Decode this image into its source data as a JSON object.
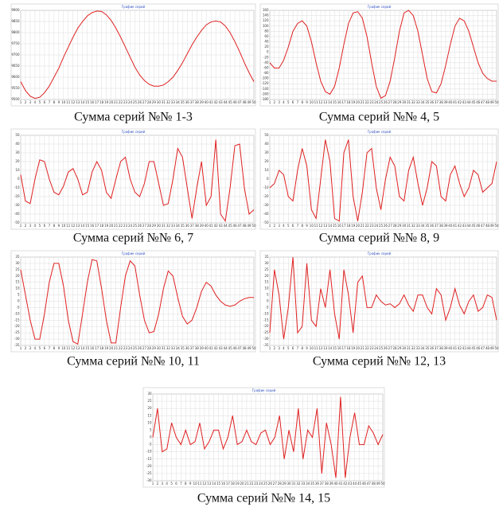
{
  "chart_data": [
    {
      "type": "line",
      "title": "График серий",
      "caption": "Сумма серий №№ 1-3",
      "color": "#e02020",
      "grid": true,
      "categories": [
        1,
        2,
        3,
        4,
        5,
        6,
        7,
        8,
        9,
        10,
        11,
        12,
        13,
        14,
        15,
        16,
        17,
        18,
        19,
        20,
        21,
        22,
        23,
        24,
        25,
        26,
        27,
        28,
        29,
        30,
        31,
        32,
        33,
        34,
        35,
        36,
        37,
        38,
        39,
        40,
        41,
        42,
        43,
        44,
        45,
        46,
        47,
        48,
        49,
        50
      ],
      "values": [
        9580,
        9540,
        9515,
        9505,
        9510,
        9530,
        9560,
        9600,
        9640,
        9690,
        9735,
        9780,
        9820,
        9850,
        9875,
        9890,
        9897,
        9895,
        9880,
        9855,
        9820,
        9780,
        9735,
        9690,
        9645,
        9610,
        9585,
        9568,
        9560,
        9560,
        9565,
        9580,
        9600,
        9630,
        9665,
        9705,
        9745,
        9780,
        9810,
        9835,
        9848,
        9852,
        9848,
        9830,
        9800,
        9760,
        9715,
        9665,
        9620,
        9580
      ],
      "ylim": [
        9500,
        9900
      ],
      "yticks": [
        9500,
        9550,
        9600,
        9650,
        9700,
        9750,
        9800,
        9850,
        9900
      ]
    },
    {
      "type": "line",
      "title": "График серий",
      "caption": "Сумма серий №№ 4, 5",
      "color": "#e02020",
      "grid": true,
      "categories": [
        1,
        2,
        3,
        4,
        5,
        6,
        7,
        8,
        9,
        10,
        11,
        12,
        13,
        14,
        15,
        16,
        17,
        18,
        19,
        20,
        21,
        22,
        23,
        24,
        25,
        26,
        27,
        28,
        29,
        30,
        31,
        32,
        33,
        34,
        35,
        36,
        37,
        38,
        39,
        40,
        41,
        42,
        43,
        44,
        45,
        46,
        47,
        48,
        49,
        50
      ],
      "values": [
        -40,
        -60,
        -60,
        -30,
        20,
        80,
        110,
        120,
        100,
        40,
        -40,
        -110,
        -150,
        -160,
        -130,
        -60,
        30,
        110,
        150,
        155,
        130,
        60,
        -40,
        -130,
        -175,
        -165,
        -110,
        -20,
        80,
        150,
        160,
        140,
        80,
        -10,
        -100,
        -150,
        -155,
        -120,
        -50,
        30,
        100,
        130,
        120,
        80,
        20,
        -40,
        -80,
        -100,
        -110,
        -110
      ],
      "ylim": [
        -180,
        160
      ],
      "yticks": [
        -180,
        -160,
        -140,
        -120,
        -100,
        -80,
        -60,
        -40,
        -20,
        0,
        20,
        40,
        60,
        80,
        100,
        120,
        140,
        160
      ]
    },
    {
      "type": "line",
      "title": "График серий",
      "caption": "Сумма серий №№ 6, 7",
      "color": "#e02020",
      "grid": true,
      "categories": [
        1,
        2,
        3,
        4,
        5,
        6,
        7,
        8,
        9,
        10,
        11,
        12,
        13,
        14,
        15,
        16,
        17,
        18,
        19,
        20,
        21,
        22,
        23,
        24,
        25,
        26,
        27,
        28,
        29,
        30,
        31,
        32,
        33,
        34,
        35,
        36,
        37,
        38,
        39,
        40,
        41,
        42,
        43,
        44,
        45,
        46,
        47,
        48,
        49,
        50
      ],
      "values": [
        5,
        -25,
        -28,
        0,
        22,
        20,
        0,
        -15,
        -18,
        -8,
        8,
        12,
        0,
        -18,
        -15,
        8,
        20,
        10,
        -15,
        -22,
        0,
        20,
        25,
        0,
        -15,
        -20,
        -5,
        20,
        20,
        -5,
        -30,
        -28,
        0,
        35,
        25,
        -10,
        -45,
        -10,
        20,
        -30,
        -20,
        45,
        -40,
        -48,
        -10,
        38,
        40,
        -10,
        -40,
        -35
      ],
      "ylim": [
        -50,
        50
      ],
      "yticks": [
        -50,
        -40,
        -30,
        -20,
        -10,
        0,
        10,
        20,
        30,
        40,
        50
      ]
    },
    {
      "type": "line",
      "title": "График серий",
      "caption": "Сумма серий №№ 8, 9",
      "color": "#e02020",
      "grid": true,
      "categories": [
        1,
        2,
        3,
        4,
        5,
        6,
        7,
        8,
        9,
        10,
        11,
        12,
        13,
        14,
        15,
        16,
        17,
        18,
        19,
        20,
        21,
        22,
        23,
        24,
        25,
        26,
        27,
        28,
        29,
        30,
        31,
        32,
        33,
        34,
        35,
        36,
        37,
        38,
        39,
        40,
        41,
        42,
        43,
        44,
        45,
        46,
        47,
        48,
        49,
        50
      ],
      "values": [
        -10,
        -5,
        10,
        5,
        -20,
        -25,
        10,
        35,
        15,
        -35,
        -45,
        0,
        45,
        20,
        -45,
        -48,
        30,
        45,
        -20,
        -48,
        -15,
        30,
        35,
        -10,
        -35,
        0,
        25,
        15,
        -20,
        -25,
        10,
        25,
        -5,
        -30,
        -10,
        20,
        15,
        -20,
        -25,
        5,
        15,
        -5,
        -20,
        -10,
        10,
        5,
        -15,
        -10,
        -5,
        20
      ],
      "ylim": [
        -50,
        50
      ],
      "yticks": [
        -50,
        -40,
        -30,
        -20,
        -10,
        0,
        10,
        20,
        30,
        40,
        50
      ]
    },
    {
      "type": "line",
      "title": "График серий",
      "caption": "Сумма серий №№ 10, 11",
      "color": "#e02020",
      "grid": true,
      "categories": [
        1,
        2,
        3,
        4,
        5,
        6,
        7,
        8,
        9,
        10,
        11,
        12,
        13,
        14,
        15,
        16,
        17,
        18,
        19,
        20,
        21,
        22,
        23,
        24,
        25,
        26,
        27,
        28,
        29,
        30,
        31,
        32,
        33,
        34,
        35,
        36,
        37,
        38,
        39,
        40,
        41,
        42,
        43,
        44,
        45,
        46,
        47,
        48,
        49,
        50
      ],
      "values": [
        25,
        5,
        -15,
        -30,
        -30,
        -10,
        15,
        30,
        30,
        12,
        -15,
        -32,
        -34,
        -10,
        15,
        33,
        32,
        10,
        -15,
        -33,
        -33,
        -5,
        20,
        32,
        28,
        5,
        -15,
        -25,
        -24,
        -10,
        10,
        24,
        20,
        3,
        -12,
        -18,
        -15,
        -5,
        8,
        15,
        12,
        5,
        0,
        -3,
        -4,
        -3,
        0,
        2,
        3,
        3
      ],
      "ylim": [
        -35,
        35
      ],
      "yticks": [
        -35,
        -30,
        -25,
        -20,
        -15,
        -10,
        -5,
        0,
        5,
        10,
        15,
        20,
        25,
        30,
        35
      ]
    },
    {
      "type": "line",
      "title": "График серий",
      "caption": "Сумма серий №№ 12, 13",
      "color": "#e02020",
      "grid": true,
      "categories": [
        1,
        2,
        3,
        4,
        5,
        6,
        7,
        8,
        9,
        10,
        11,
        12,
        13,
        14,
        15,
        16,
        17,
        18,
        19,
        20,
        21,
        22,
        23,
        24,
        25,
        26,
        27,
        28,
        29,
        30,
        31,
        32,
        33,
        34,
        35,
        36,
        37,
        38,
        39,
        40,
        41,
        42,
        43,
        44,
        45,
        46,
        47,
        48,
        49,
        50
      ],
      "values": [
        -25,
        25,
        5,
        -30,
        -5,
        35,
        -25,
        -20,
        30,
        -15,
        -20,
        10,
        -5,
        25,
        -10,
        -30,
        25,
        5,
        -25,
        15,
        20,
        -5,
        -5,
        5,
        0,
        -3,
        -2,
        -5,
        -2,
        5,
        -3,
        -8,
        5,
        5,
        -5,
        -10,
        10,
        5,
        -15,
        -5,
        10,
        -3,
        -10,
        0,
        5,
        -8,
        -5,
        5,
        3,
        -15
      ],
      "ylim": [
        -35,
        35
      ],
      "yticks": [
        -35,
        -30,
        -25,
        -20,
        -15,
        -10,
        -5,
        0,
        5,
        10,
        15,
        20,
        25,
        30,
        35
      ]
    },
    {
      "type": "line",
      "title": "График серий",
      "caption": "Сумма серий №№ 14, 15",
      "color": "#e02020",
      "grid": true,
      "categories": [
        1,
        2,
        3,
        4,
        5,
        6,
        7,
        8,
        9,
        10,
        11,
        12,
        13,
        14,
        15,
        16,
        17,
        18,
        19,
        20,
        21,
        22,
        23,
        24,
        25,
        26,
        27,
        28,
        29,
        30,
        31,
        32,
        33,
        34,
        35,
        36,
        37,
        38,
        39,
        40,
        41,
        42,
        43,
        44,
        45,
        46,
        47,
        48,
        49,
        50
      ],
      "values": [
        0,
        20,
        -10,
        -8,
        10,
        0,
        -5,
        5,
        -5,
        -3,
        10,
        -8,
        -3,
        5,
        5,
        -8,
        0,
        15,
        -5,
        -3,
        5,
        -3,
        -5,
        3,
        5,
        -5,
        0,
        15,
        -15,
        5,
        -10,
        20,
        -15,
        5,
        0,
        20,
        -25,
        10,
        -5,
        -28,
        28,
        -28,
        0,
        17,
        -5,
        -5,
        8,
        3,
        -5,
        2
      ],
      "ylim": [
        -30,
        30
      ],
      "yticks": [
        -30,
        -25,
        -20,
        -15,
        -10,
        -5,
        0,
        5,
        10,
        15,
        20,
        25,
        30
      ]
    }
  ]
}
